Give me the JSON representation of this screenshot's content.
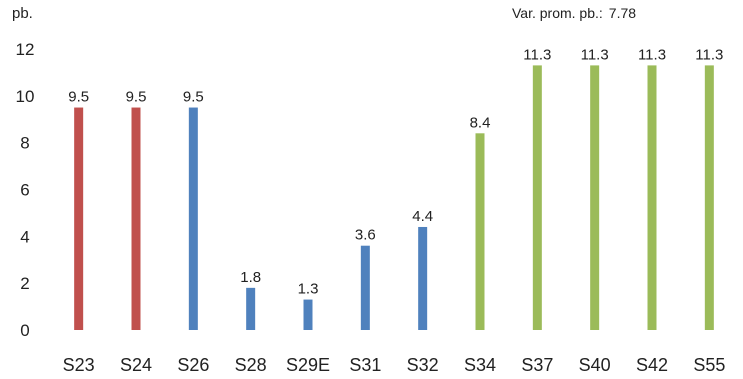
{
  "chart_data": {
    "type": "bar",
    "ylabel": "pb.",
    "ylim": [
      0,
      12
    ],
    "yticks": [
      0,
      2,
      4,
      6,
      8,
      10,
      12
    ],
    "grid": false,
    "annotation": {
      "label": "Var. prom. pb.:",
      "value": "7.78"
    },
    "categories": [
      "S23",
      "S24",
      "S26",
      "S28",
      "S29E",
      "S31",
      "S32",
      "S34",
      "S37",
      "S40",
      "S42",
      "S55"
    ],
    "values": [
      9.5,
      9.5,
      9.5,
      1.8,
      1.3,
      3.6,
      4.4,
      8.4,
      11.3,
      11.3,
      11.3,
      11.3
    ],
    "bar_colors": [
      "#c0504d",
      "#c0504d",
      "#4f81bd",
      "#4f81bd",
      "#4f81bd",
      "#4f81bd",
      "#4f81bd",
      "#9bbb59",
      "#9bbb59",
      "#9bbb59",
      "#9bbb59",
      "#9bbb59"
    ]
  }
}
